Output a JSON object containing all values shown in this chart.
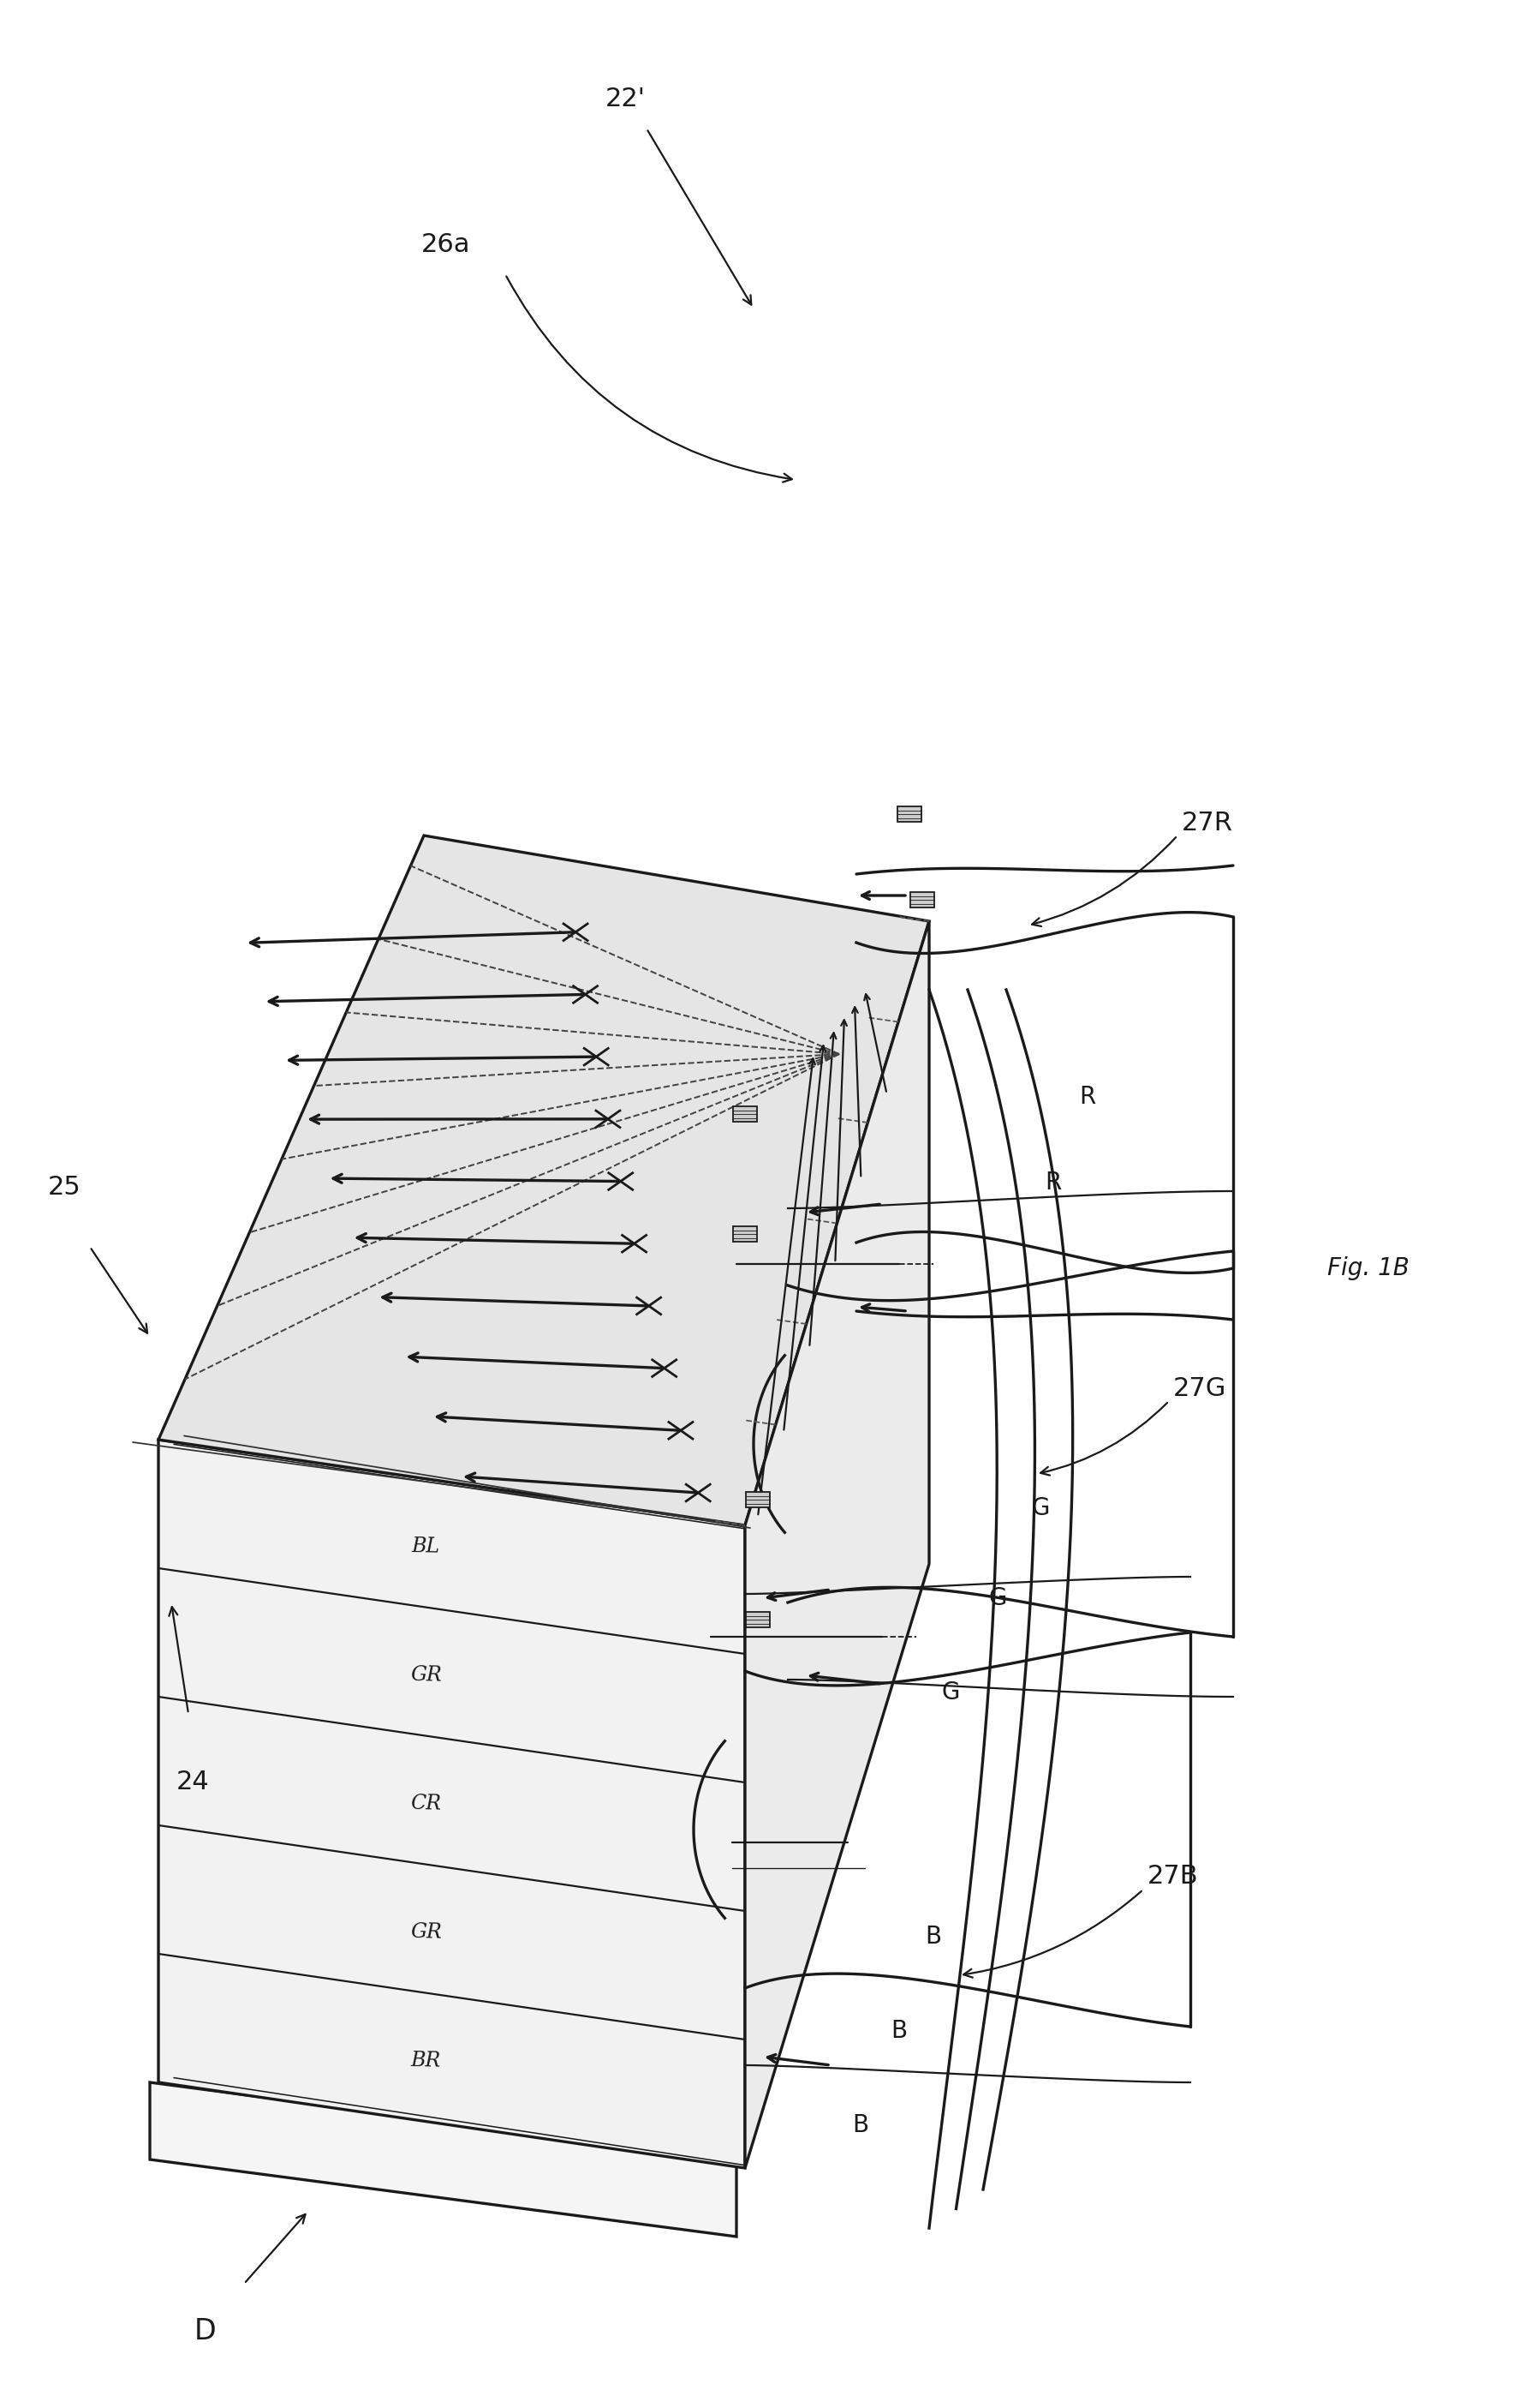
{
  "bg_color": "#ffffff",
  "line_color": "#1a1a1a",
  "fig_label": "Fig. 1B",
  "label_22p": "22'",
  "label_26a": "26a",
  "label_25": "25",
  "label_24": "24",
  "label_D": "D",
  "label_27R": "27R",
  "label_27G": "27G",
  "label_27B": "27B",
  "layer_labels": [
    "BR",
    "GR",
    "CR",
    "GR",
    "BL"
  ],
  "n_layers": 5,
  "n_rays": 10,
  "lw_main": 2.4,
  "lw_thin": 1.6,
  "font_size_main": 22,
  "font_size_fig": 20
}
